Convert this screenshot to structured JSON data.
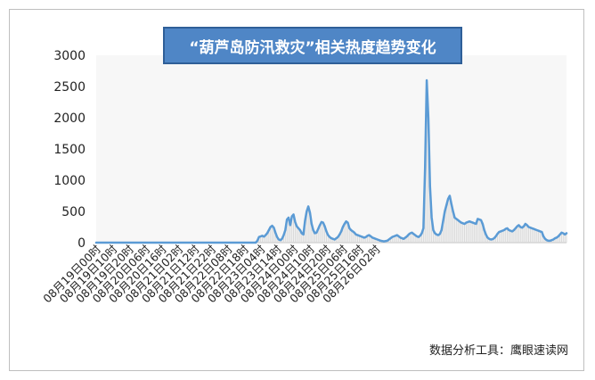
{
  "chart_data": {
    "type": "line",
    "title": "“葫芦岛防汛救灾”相关热度趋势变化",
    "source_note": "数据分析工具：鹰眼速读网",
    "xlabel": "",
    "ylabel": "",
    "ylim": [
      0,
      3000
    ],
    "yticks": [
      0,
      500,
      1000,
      1500,
      2000,
      2500,
      3000
    ],
    "xtick_labels": [
      "08月19日00时",
      "08月19日10时",
      "08月19日20时",
      "08月20日06时",
      "08月20日16时",
      "08月21日02时",
      "08月21日12时",
      "08月21日22时",
      "08月22日08时",
      "08月22日18时",
      "08月23日04时",
      "08月23日14时",
      "08月24日00时",
      "08月24日10时",
      "08月24日20时",
      "08月25日06时",
      "08月25日16时",
      "08月26日02时"
    ],
    "grid": false,
    "colors": {
      "line": "#5b9bd5",
      "fill": "#d9d9d9"
    },
    "x_start": "08月19日00时",
    "x_step_hours": 1,
    "values": [
      0,
      0,
      0,
      0,
      0,
      0,
      0,
      0,
      0,
      0,
      0,
      0,
      0,
      0,
      0,
      0,
      0,
      0,
      0,
      0,
      0,
      0,
      0,
      0,
      0,
      0,
      0,
      0,
      0,
      0,
      0,
      0,
      0,
      0,
      0,
      0,
      0,
      0,
      0,
      0,
      0,
      0,
      0,
      0,
      0,
      0,
      0,
      0,
      0,
      0,
      0,
      0,
      0,
      0,
      0,
      0,
      0,
      0,
      0,
      0,
      0,
      0,
      0,
      0,
      0,
      0,
      0,
      0,
      0,
      0,
      0,
      0,
      0,
      0,
      0,
      0,
      0,
      0,
      0,
      0,
      0,
      0,
      0,
      0,
      0,
      0,
      0,
      0,
      0,
      0,
      0,
      0,
      0,
      0,
      0,
      0,
      0,
      0,
      30,
      90,
      100,
      110,
      95,
      120,
      150,
      200,
      250,
      270,
      240,
      160,
      90,
      50,
      40,
      60,
      120,
      200,
      370,
      400,
      280,
      420,
      450,
      330,
      260,
      230,
      200,
      150,
      130,
      350,
      500,
      580,
      480,
      300,
      200,
      150,
      160,
      220,
      280,
      330,
      320,
      260,
      180,
      120,
      90,
      70,
      60,
      50,
      70,
      90,
      130,
      180,
      250,
      300,
      340,
      320,
      230,
      200,
      180,
      160,
      130,
      120,
      110,
      100,
      90,
      80,
      90,
      110,
      120,
      100,
      80,
      70,
      60,
      50,
      40,
      30,
      25,
      20,
      25,
      30,
      50,
      70,
      90,
      100,
      110,
      120,
      100,
      80,
      70,
      60,
      80,
      100,
      130,
      150,
      160,
      140,
      120,
      100,
      90,
      110,
      150,
      230,
      1200,
      2600,
      2000,
      900,
      400,
      200,
      150,
      130,
      120,
      140,
      200,
      350,
      500,
      600,
      700,
      750,
      620,
      500,
      400,
      380,
      360,
      340,
      320,
      310,
      300,
      320,
      330,
      340,
      330,
      320,
      310,
      300,
      380,
      370,
      360,
      300,
      200,
      130,
      80,
      60,
      50,
      55,
      70,
      100,
      140,
      170,
      180,
      190,
      200,
      220,
      230,
      200,
      190,
      180,
      200,
      230,
      260,
      280,
      250,
      240,
      260,
      300,
      280,
      250,
      240,
      230,
      220,
      210,
      200,
      190,
      180,
      170,
      100,
      60,
      40,
      30,
      30,
      40,
      50,
      70,
      80,
      100,
      130,
      160,
      150,
      130,
      150
    ]
  }
}
